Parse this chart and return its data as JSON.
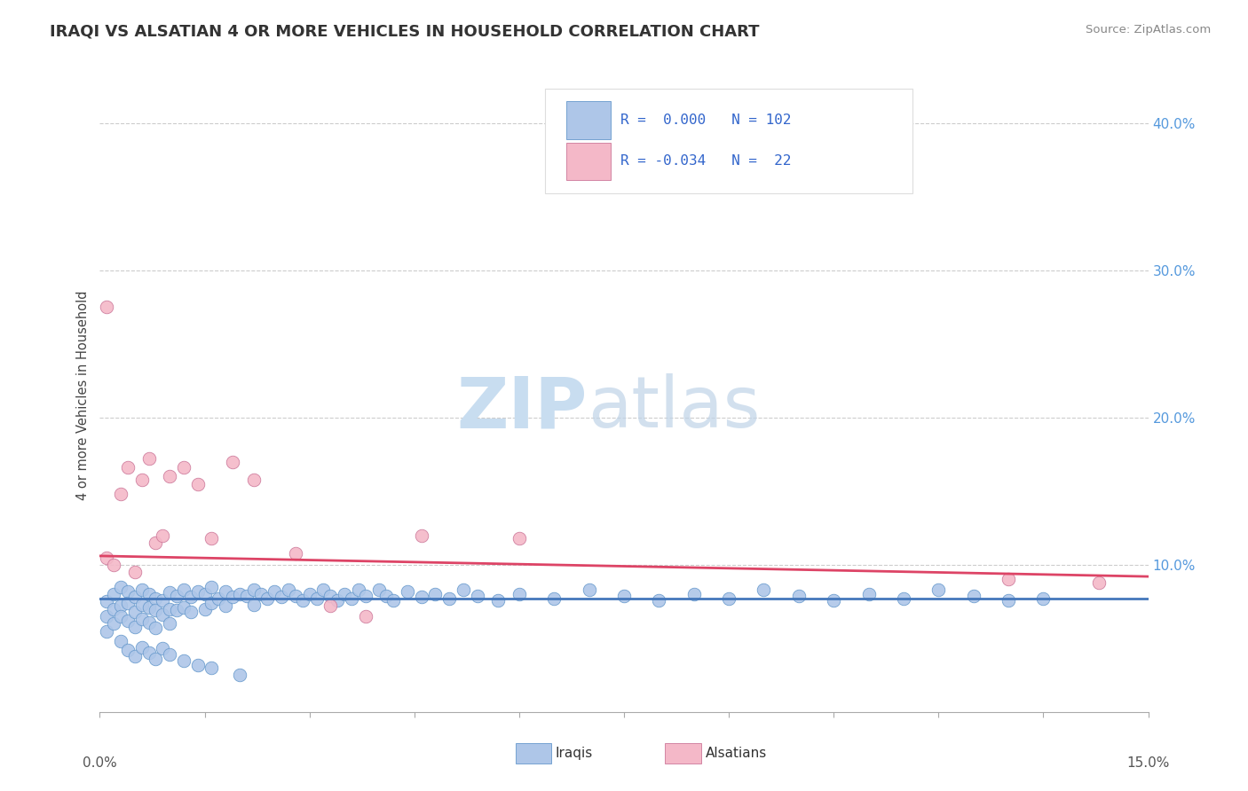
{
  "title": "IRAQI VS ALSATIAN 4 OR MORE VEHICLES IN HOUSEHOLD CORRELATION CHART",
  "source": "Source: ZipAtlas.com",
  "ylabel": "4 or more Vehicles in Household",
  "x_range": [
    0.0,
    0.15
  ],
  "y_range": [
    0.0,
    0.43
  ],
  "y_ticks_labels": [
    "10.0%",
    "20.0%",
    "30.0%",
    "40.0%"
  ],
  "y_ticks_vals": [
    0.1,
    0.2,
    0.3,
    0.4
  ],
  "legend_r_iraqi": " 0.000",
  "legend_n_iraqi": "102",
  "legend_r_alsatian": "-0.034",
  "legend_n_alsatian": " 22",
  "iraqi_color": "#aec6e8",
  "iraqi_edge_color": "#6699cc",
  "alsatian_color": "#f4b8c8",
  "alsatian_edge_color": "#cc7799",
  "trendline_iraqi_color": "#4477bb",
  "trendline_alsatian_color": "#dd4466",
  "iraqi_trend_y0": 0.077,
  "iraqi_trend_y1": 0.077,
  "alsatian_trend_y0": 0.106,
  "alsatian_trend_y1": 0.092,
  "watermark_zip_color": "#c8ddf0",
  "watermark_atlas_color": "#c0d4e8",
  "background_color": "#ffffff",
  "grid_color": "#cccccc",
  "tick_label_color": "#5599dd",
  "iraqi_x": [
    0.001,
    0.001,
    0.001,
    0.002,
    0.002,
    0.002,
    0.003,
    0.003,
    0.003,
    0.004,
    0.004,
    0.004,
    0.005,
    0.005,
    0.005,
    0.006,
    0.006,
    0.006,
    0.007,
    0.007,
    0.007,
    0.008,
    0.008,
    0.008,
    0.009,
    0.009,
    0.01,
    0.01,
    0.01,
    0.011,
    0.011,
    0.012,
    0.012,
    0.013,
    0.013,
    0.014,
    0.015,
    0.015,
    0.016,
    0.016,
    0.017,
    0.018,
    0.018,
    0.019,
    0.02,
    0.021,
    0.022,
    0.022,
    0.023,
    0.024,
    0.025,
    0.026,
    0.027,
    0.028,
    0.029,
    0.03,
    0.031,
    0.032,
    0.033,
    0.034,
    0.035,
    0.036,
    0.037,
    0.038,
    0.04,
    0.041,
    0.042,
    0.044,
    0.046,
    0.048,
    0.05,
    0.052,
    0.054,
    0.057,
    0.06,
    0.065,
    0.07,
    0.075,
    0.08,
    0.085,
    0.09,
    0.095,
    0.1,
    0.105,
    0.11,
    0.115,
    0.12,
    0.125,
    0.13,
    0.135,
    0.003,
    0.004,
    0.005,
    0.006,
    0.007,
    0.008,
    0.009,
    0.01,
    0.012,
    0.014,
    0.016,
    0.02
  ],
  "iraqi_y": [
    0.075,
    0.065,
    0.055,
    0.08,
    0.07,
    0.06,
    0.085,
    0.072,
    0.065,
    0.082,
    0.074,
    0.062,
    0.078,
    0.068,
    0.058,
    0.083,
    0.073,
    0.063,
    0.08,
    0.071,
    0.061,
    0.077,
    0.069,
    0.057,
    0.076,
    0.066,
    0.081,
    0.07,
    0.06,
    0.079,
    0.069,
    0.083,
    0.071,
    0.078,
    0.068,
    0.082,
    0.08,
    0.07,
    0.085,
    0.074,
    0.077,
    0.082,
    0.072,
    0.078,
    0.08,
    0.079,
    0.083,
    0.073,
    0.08,
    0.077,
    0.082,
    0.078,
    0.083,
    0.079,
    0.076,
    0.08,
    0.077,
    0.083,
    0.079,
    0.076,
    0.08,
    0.077,
    0.083,
    0.079,
    0.083,
    0.079,
    0.076,
    0.082,
    0.078,
    0.08,
    0.077,
    0.083,
    0.079,
    0.076,
    0.08,
    0.077,
    0.083,
    0.079,
    0.076,
    0.08,
    0.077,
    0.083,
    0.079,
    0.076,
    0.08,
    0.077,
    0.083,
    0.079,
    0.076,
    0.077,
    0.048,
    0.042,
    0.038,
    0.044,
    0.04,
    0.036,
    0.043,
    0.039,
    0.035,
    0.032,
    0.03,
    0.025
  ],
  "alsatian_x": [
    0.001,
    0.002,
    0.003,
    0.004,
    0.005,
    0.006,
    0.007,
    0.008,
    0.009,
    0.01,
    0.012,
    0.014,
    0.016,
    0.019,
    0.022,
    0.028,
    0.033,
    0.038,
    0.046,
    0.06,
    0.13,
    0.143
  ],
  "alsatian_y": [
    0.105,
    0.1,
    0.148,
    0.166,
    0.095,
    0.158,
    0.172,
    0.115,
    0.12,
    0.16,
    0.166,
    0.155,
    0.118,
    0.17,
    0.158,
    0.108,
    0.072,
    0.065,
    0.12,
    0.118,
    0.09,
    0.088
  ]
}
